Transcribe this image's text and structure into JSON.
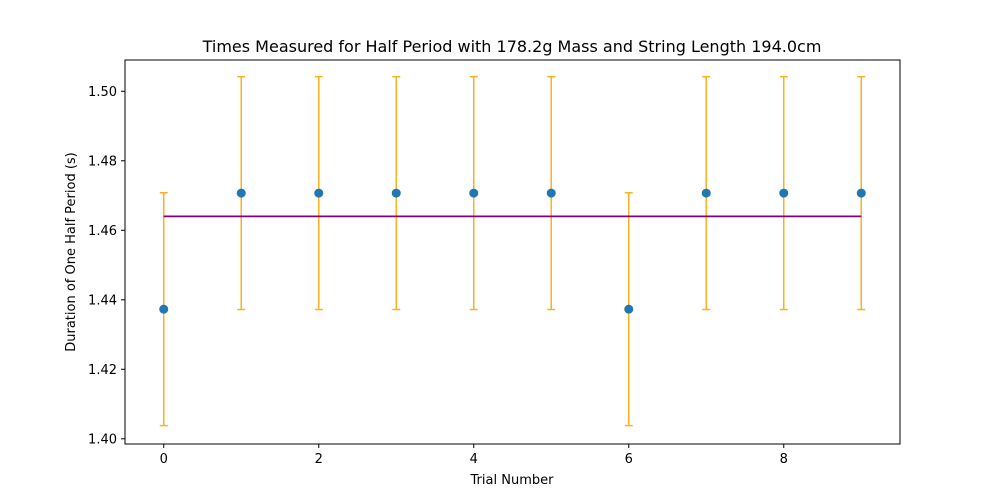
{
  "chart_data": {
    "type": "scatter",
    "title": "Times Measured for Half Period with 178.2g Mass and String Length 194.0cm",
    "xlabel": "Trial Number",
    "ylabel": "Duration of One Half Period (s)",
    "xlim": [
      -0.5,
      9.5
    ],
    "ylim": [
      1.3985,
      1.509
    ],
    "x_ticks": [
      0,
      2,
      4,
      6,
      8
    ],
    "y_ticks": [
      1.4,
      1.42,
      1.44,
      1.46,
      1.48,
      1.5
    ],
    "x_tick_labels": [
      "0",
      "2",
      "4",
      "6",
      "8"
    ],
    "y_tick_labels": [
      "1.40",
      "1.42",
      "1.44",
      "1.46",
      "1.48",
      "1.50"
    ],
    "grid": false,
    "points": {
      "x": [
        0,
        1,
        2,
        3,
        4,
        5,
        6,
        7,
        8,
        9
      ],
      "y": [
        1.4373,
        1.4707,
        1.4707,
        1.4707,
        1.4707,
        1.4707,
        1.4373,
        1.4707,
        1.4707,
        1.4707
      ],
      "error": 0.0335,
      "color": "#1f77b4",
      "error_color": "#ffb020"
    },
    "mean_line": {
      "value": 1.464,
      "x_range": [
        0,
        9
      ],
      "color": "#800080"
    }
  }
}
